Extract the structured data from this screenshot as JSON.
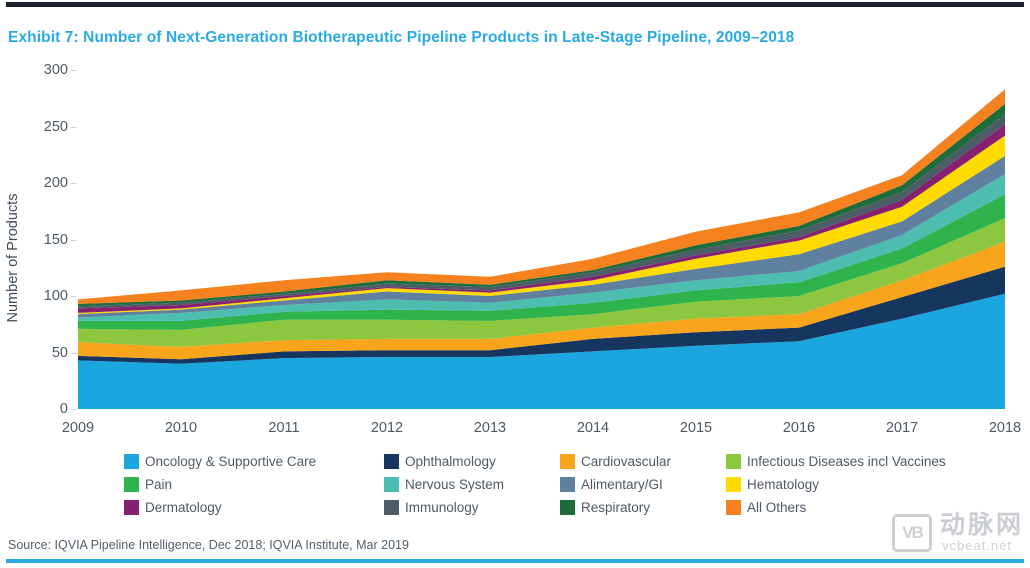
{
  "title": "Exhibit 7: Number of Next-Generation Biotherapeutic Pipeline Products in Late-Stage Pipeline, 2009–2018",
  "chart_data": {
    "type": "area",
    "stacked": true,
    "title": "Number of Next-Generation Biotherapeutic Pipeline Products in Late-Stage Pipeline, 2009-2018",
    "xlabel": "",
    "ylabel": "Number of Products",
    "x": [
      2009,
      2010,
      2011,
      2012,
      2013,
      2014,
      2015,
      2016,
      2017,
      2018
    ],
    "ylim": [
      0,
      300
    ],
    "yticks": [
      0,
      50,
      100,
      150,
      200,
      250,
      300
    ],
    "grid": false,
    "legend_position": "bottom",
    "series": [
      {
        "name": "Oncology & Supportive Care",
        "color": "#1ca6e0",
        "values": [
          43,
          40,
          45,
          46,
          46,
          51,
          56,
          60,
          80,
          102
        ]
      },
      {
        "name": "Ophthalmology",
        "color": "#16365f",
        "values": [
          4,
          4,
          6,
          6,
          6,
          11,
          12,
          12,
          19,
          24
        ]
      },
      {
        "name": "Cardiovascular",
        "color": "#f9a51c",
        "values": [
          12,
          11,
          10,
          10,
          10,
          10,
          12,
          12,
          15,
          22
        ]
      },
      {
        "name": "Infectious Diseases incl Vaccines",
        "color": "#8dc63f",
        "values": [
          12,
          15,
          18,
          17,
          16,
          12,
          15,
          16,
          15,
          21
        ]
      },
      {
        "name": "Pain",
        "color": "#2eb34d",
        "values": [
          7,
          8,
          7,
          9,
          9,
          10,
          10,
          12,
          13,
          21
        ]
      },
      {
        "name": "Nervous System",
        "color": "#4cbdae",
        "values": [
          3,
          7,
          6,
          9,
          7,
          9,
          9,
          10,
          12,
          18
        ]
      },
      {
        "name": "Alimentary/GI",
        "color": "#60809f",
        "values": [
          3,
          3,
          4,
          7,
          6,
          7,
          10,
          15,
          12,
          16
        ]
      },
      {
        "name": "Hematology",
        "color": "#ffdb00",
        "values": [
          1,
          1,
          2,
          3,
          3,
          4,
          9,
          12,
          13,
          18
        ]
      },
      {
        "name": "Dermatology",
        "color": "#86206f",
        "values": [
          4,
          3,
          2,
          1,
          2,
          3,
          3,
          3,
          6,
          10
        ]
      },
      {
        "name": "Immunology",
        "color": "#4c5d68",
        "values": [
          2,
          2,
          2,
          3,
          3,
          4,
          5,
          6,
          7,
          9
        ]
      },
      {
        "name": "Respiratory",
        "color": "#1e6b3c",
        "values": [
          2,
          2,
          2,
          3,
          2,
          2,
          4,
          4,
          6,
          9
        ]
      },
      {
        "name": "All Others",
        "color": "#f5821f",
        "values": [
          4,
          9,
          10,
          7,
          7,
          10,
          12,
          12,
          9,
          13
        ]
      }
    ]
  },
  "source": "Source: IQVIA Pipeline Intelligence, Dec 2018; IQVIA Institute, Mar 2019",
  "watermark": {
    "logo": "VB",
    "site_name": "动脉网",
    "domain": "vcbeat.net"
  },
  "colors": {
    "title": "#29abe2",
    "top_rule": "#1b222e",
    "bottom_rule": "#29abe2",
    "axis_text": "#4d5a66"
  }
}
